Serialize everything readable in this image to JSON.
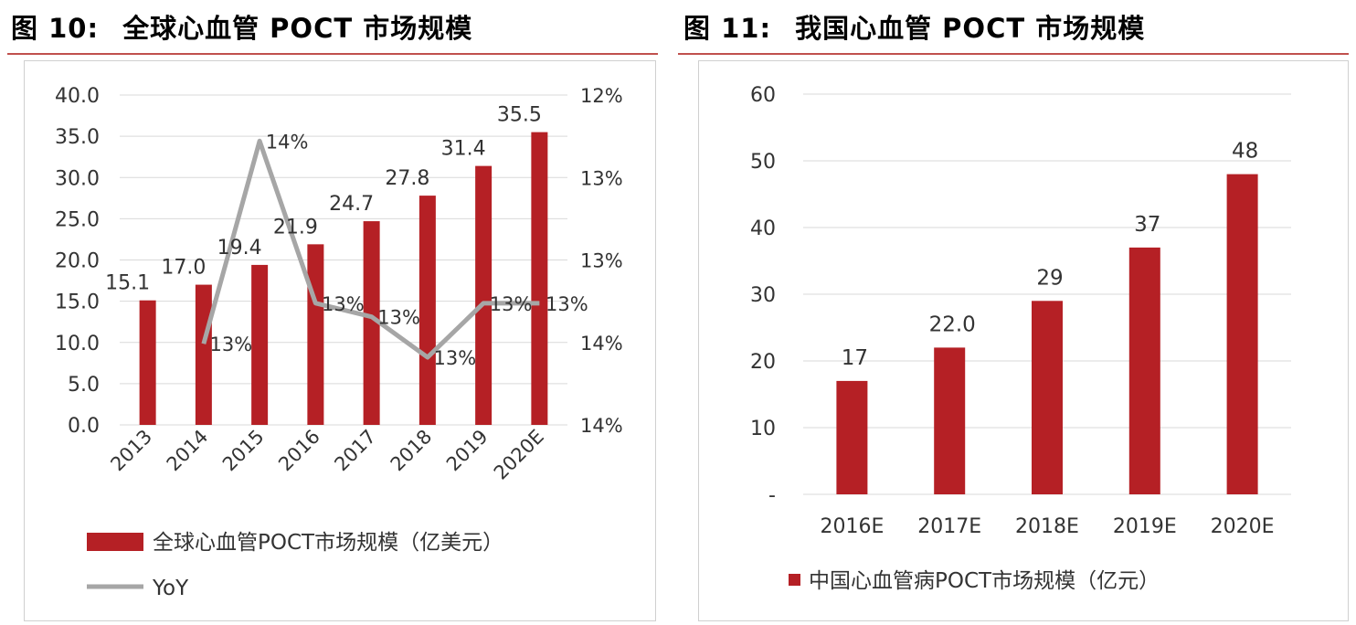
{
  "figures": [
    {
      "number": "图 10:",
      "title": "全球心血管 POCT 市场规模",
      "chart_data": {
        "type": "bar",
        "categories": [
          "2013",
          "2014",
          "2015",
          "2016",
          "2017",
          "2018",
          "2019",
          "2020E"
        ],
        "series": [
          {
            "name": "全球心血管POCT市场规模（亿美元）",
            "axis": "left",
            "color": "#b52025",
            "values": [
              15.1,
              17.0,
              19.4,
              21.9,
              24.7,
              27.8,
              31.4,
              35.5
            ],
            "labels": [
              "15.1",
              "17.0",
              "19.4",
              "21.9",
              "24.7",
              "27.8",
              "31.4",
              "35.5"
            ]
          },
          {
            "name": "YoY",
            "type": "line",
            "axis": "right",
            "color": "#a6a6a6",
            "values": [
              null,
              0.126,
              0.141,
              0.129,
              0.128,
              0.125,
              0.129,
              0.129
            ],
            "labels": [
              null,
              "13%",
              "14%",
              "13%",
              "13%",
              "13%",
              "13%",
              "13%"
            ]
          }
        ],
        "ylim": [
          0,
          40
        ],
        "yticks": [
          "0.0",
          "5.0",
          "10.0",
          "15.0",
          "20.0",
          "25.0",
          "30.0",
          "35.0",
          "40.0"
        ],
        "y2lim": [
          0.12,
          0.1444
        ],
        "y2ticks": [
          "12%",
          "13%",
          "13%",
          "14%",
          "14%"
        ],
        "grid": true,
        "legend_position": "bottom"
      }
    },
    {
      "number": "图 11:",
      "title": "我国心血管 POCT 市场规模",
      "chart_data": {
        "type": "bar",
        "categories": [
          "2016E",
          "2017E",
          "2018E",
          "2019E",
          "2020E"
        ],
        "series": [
          {
            "name": "中国心血管病POCT市场规模（亿元）",
            "color": "#b52025",
            "values": [
              17,
              22.0,
              29,
              37,
              48
            ],
            "labels": [
              "17",
              "22.0",
              "29",
              "37",
              "48"
            ]
          }
        ],
        "ylim": [
          0,
          60
        ],
        "yticks": [
          "-",
          "10",
          "20",
          "30",
          "40",
          "50",
          "60"
        ],
        "grid": true,
        "legend_position": "bottom"
      }
    }
  ]
}
